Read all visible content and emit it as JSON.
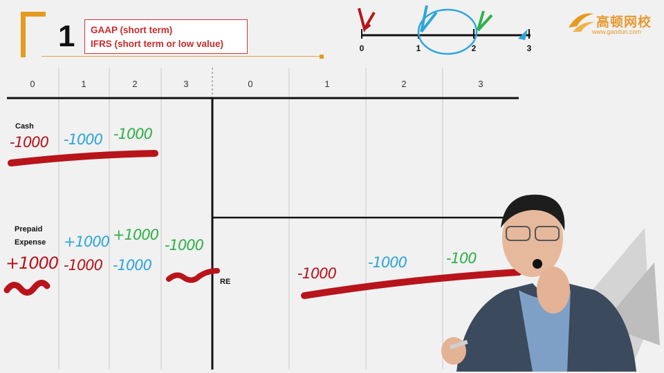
{
  "slide": {
    "number": "1"
  },
  "notes": {
    "gaap": "GAAP (short term)",
    "ifrs": "IFRS (short term or low value)"
  },
  "logo": {
    "name": "高顿网校",
    "url": "www.gaodun.com"
  },
  "timeline": {
    "labels": [
      "0",
      "1",
      "2",
      "3"
    ]
  },
  "left_table": {
    "headers": [
      "0",
      "1",
      "2",
      "3"
    ],
    "rows": [
      {
        "label": "Cash",
        "entries": [
          "-1000",
          "-1000",
          "-1000"
        ]
      },
      {
        "label": "Prepaid Expense",
        "entries_top": [
          "+1000",
          "+1000",
          "-1000"
        ],
        "entries_bottom": [
          "+1000",
          "-1000",
          "-1000"
        ]
      }
    ]
  },
  "right_table": {
    "headers": [
      "0",
      "1",
      "2",
      "3"
    ],
    "re_label": "RE",
    "re_entries": [
      "-1000",
      "-1000",
      "-100"
    ]
  },
  "colors": {
    "accent": "#e69a1f",
    "note_red": "#c82a2a",
    "ink_red": "#b8141b",
    "ink_blue": "#2ea5d9",
    "ink_green": "#2fb04a"
  }
}
